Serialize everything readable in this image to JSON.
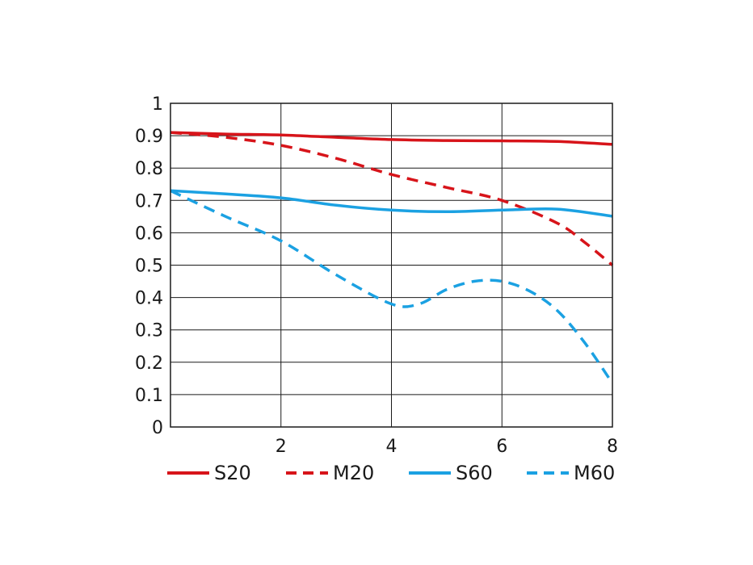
{
  "chart_data": {
    "type": "line",
    "title": "",
    "xlabel": "",
    "ylabel": "",
    "xlim": [
      0,
      8
    ],
    "ylim": [
      0,
      1
    ],
    "x_ticks": [
      "2",
      "4",
      "6",
      "8"
    ],
    "y_ticks": [
      "0",
      "0.1",
      "0.2",
      "0.3",
      "0.4",
      "0.5",
      "0.6",
      "0.7",
      "0.8",
      "0.9",
      "1"
    ],
    "grid": true,
    "legend_position": "bottom",
    "series": [
      {
        "name": "S20",
        "color": "#d7141a",
        "style": "solid",
        "x": [
          0,
          1,
          2,
          3,
          4,
          5,
          6,
          7,
          8
        ],
        "y": [
          0.91,
          0.905,
          0.902,
          0.895,
          0.888,
          0.885,
          0.884,
          0.882,
          0.873
        ]
      },
      {
        "name": "M20",
        "color": "#d7141a",
        "style": "dashed",
        "x": [
          0,
          1,
          2,
          3,
          4,
          5,
          6,
          7,
          7.5,
          8
        ],
        "y": [
          0.91,
          0.895,
          0.87,
          0.83,
          0.78,
          0.74,
          0.7,
          0.63,
          0.57,
          0.5
        ]
      },
      {
        "name": "S60",
        "color": "#1ba1e2",
        "style": "solid",
        "x": [
          0,
          1,
          2,
          3,
          4,
          5,
          6,
          7,
          8
        ],
        "y": [
          0.73,
          0.72,
          0.708,
          0.685,
          0.67,
          0.665,
          0.67,
          0.673,
          0.651
        ]
      },
      {
        "name": "M60",
        "color": "#1ba1e2",
        "style": "dashed",
        "x": [
          0,
          1,
          2,
          3,
          4,
          4.5,
          5,
          5.5,
          6,
          6.5,
          7,
          7.5,
          8
        ],
        "y": [
          0.73,
          0.65,
          0.575,
          0.47,
          0.38,
          0.38,
          0.425,
          0.45,
          0.45,
          0.42,
          0.36,
          0.26,
          0.135
        ]
      }
    ]
  }
}
